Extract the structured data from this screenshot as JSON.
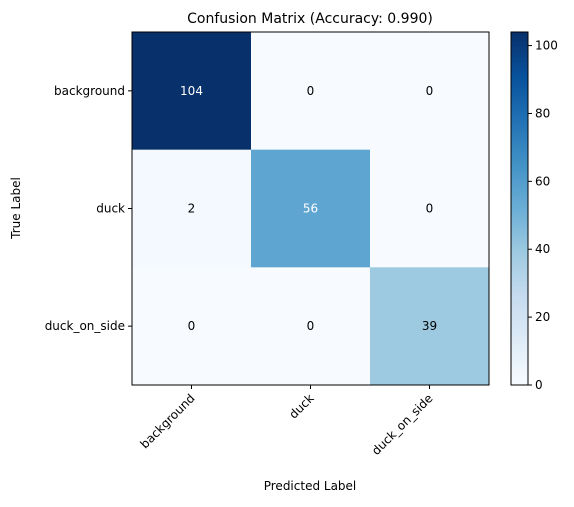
{
  "chart_data": {
    "type": "heatmap",
    "title": "Confusion Matrix (Accuracy: 0.990)",
    "xlabel": "Predicted Label",
    "ylabel": "True Label",
    "x_categories": [
      "background",
      "duck",
      "duck_on_side"
    ],
    "y_categories": [
      "background",
      "duck",
      "duck_on_side"
    ],
    "values": [
      [
        104,
        0,
        0
      ],
      [
        2,
        56,
        0
      ],
      [
        0,
        0,
        39
      ]
    ],
    "colorbar": {
      "min": 0,
      "max": 104,
      "ticks": [
        0,
        20,
        40,
        60,
        80,
        100
      ],
      "colormap": "Blues"
    },
    "colors": {
      "low": "#f7fbff",
      "high": "#08306b",
      "text_light": "#ffffff",
      "text_dark": "#000000"
    }
  }
}
